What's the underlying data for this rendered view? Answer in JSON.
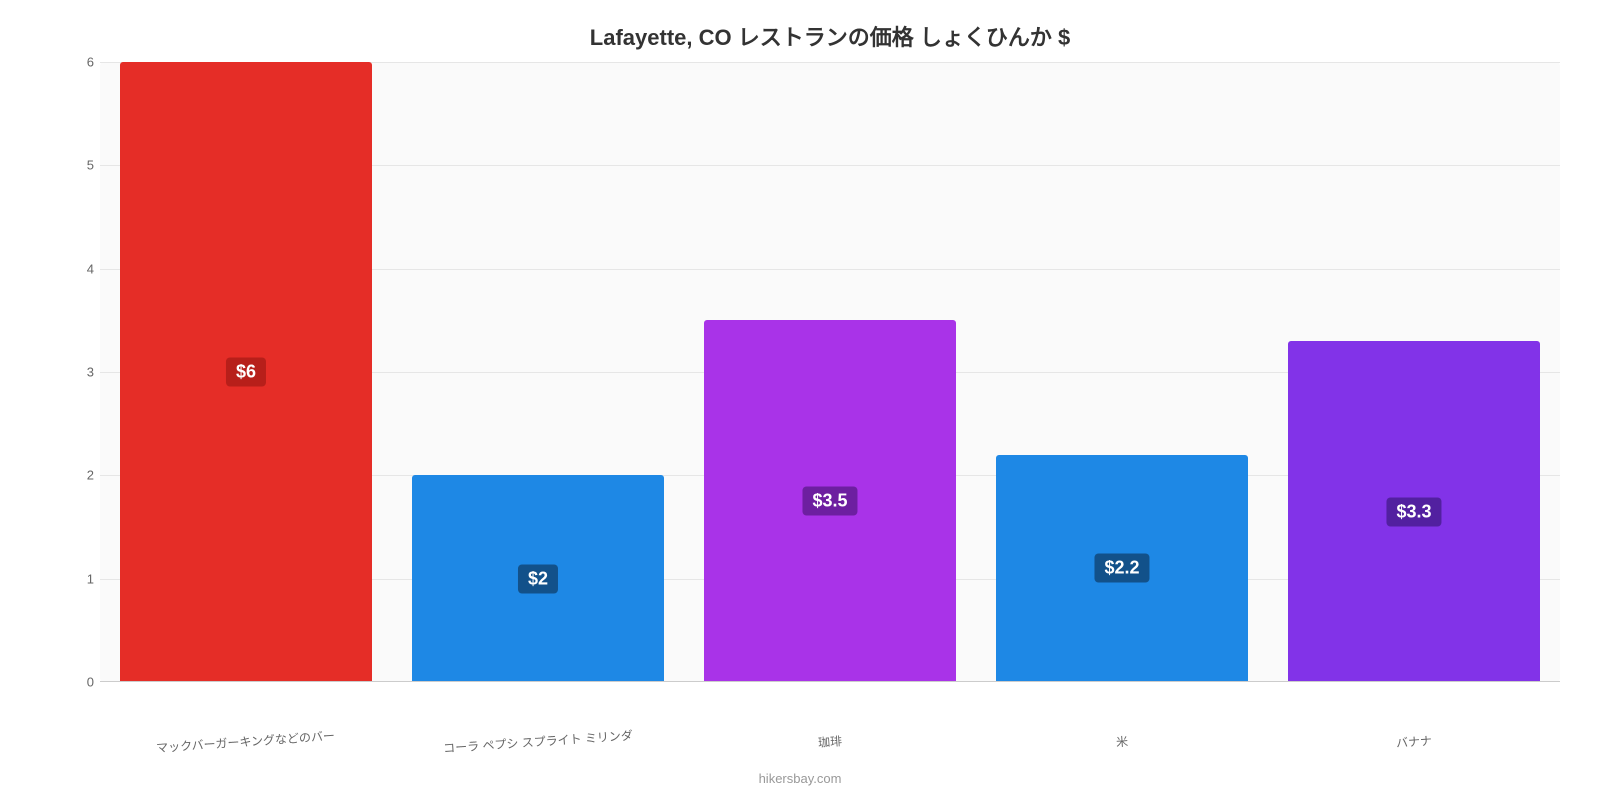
{
  "chart": {
    "type": "bar",
    "title": "Lafayette, CO レストランの価格 しょくひんか $",
    "title_fontsize": 22,
    "title_color": "#333333",
    "background_color": "#fafafa",
    "page_background": "#ffffff",
    "grid_color": "#e6e6e6",
    "baseline_color": "#cccccc",
    "y": {
      "min": 0,
      "max": 6,
      "ticks": [
        0,
        1,
        2,
        3,
        4,
        5,
        6
      ],
      "tick_color": "#666666",
      "tick_fontsize": 13
    },
    "x": {
      "label_color": "#666666",
      "label_fontsize": 12,
      "label_rotate_deg": -4
    },
    "bar_width_ratio": 0.86,
    "bars": [
      {
        "category": "マックバーガーキングなどのバー",
        "value": 6,
        "label": "$6",
        "color": "#e52d27",
        "label_bg": "#b71f1a"
      },
      {
        "category": "コーラ ペプシ スプライト ミリンダ",
        "value": 2,
        "label": "$2",
        "color": "#1e88e5",
        "label_bg": "#12518a"
      },
      {
        "category": "珈琲",
        "value": 3.5,
        "label": "$3.5",
        "color": "#a933e8",
        "label_bg": "#6d1fa0"
      },
      {
        "category": "米",
        "value": 2.2,
        "label": "$2.2",
        "color": "#1e88e5",
        "label_bg": "#12518a"
      },
      {
        "category": "バナナ",
        "value": 3.3,
        "label": "$3.3",
        "color": "#8233e8",
        "label_bg": "#5220a0"
      }
    ],
    "credit": "hikersbay.com",
    "credit_color": "#999999",
    "credit_fontsize": 13
  }
}
